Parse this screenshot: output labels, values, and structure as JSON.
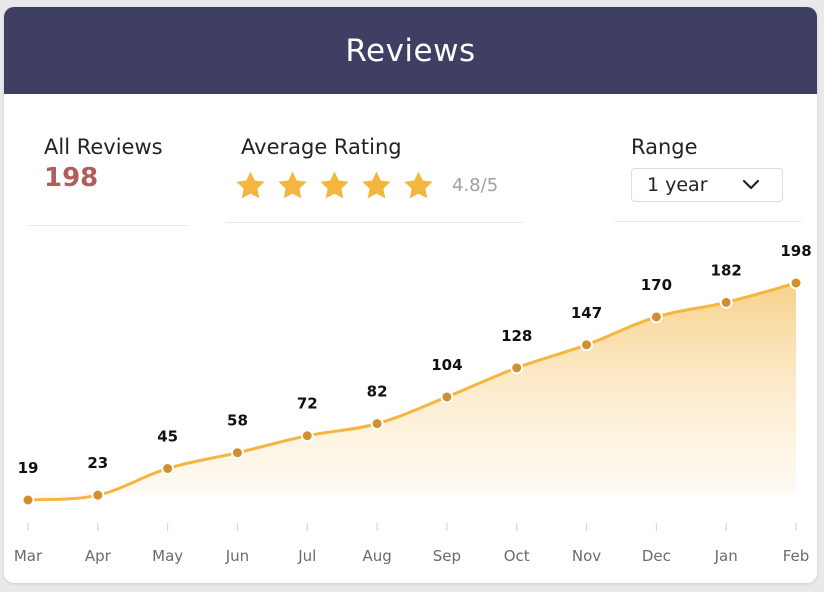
{
  "header": {
    "title": "Reviews"
  },
  "all_reviews": {
    "label": "All Reviews",
    "value": "198"
  },
  "average_rating": {
    "label": "Average Rating",
    "stars": 5,
    "rating_text": "4.8/5"
  },
  "range": {
    "label": "Range",
    "selected": "1 year"
  },
  "colors": {
    "header_bg": "#3e3f63",
    "accent_value": "#b05d5b",
    "star": "#f4b63f",
    "line": "#f4b63f",
    "point": "#d09030",
    "area_top": "#f7cf84"
  },
  "chart_data": {
    "type": "area",
    "categories": [
      "Mar",
      "Apr",
      "May",
      "Jun",
      "Jul",
      "Aug",
      "Sep",
      "Oct",
      "Nov",
      "Dec",
      "Jan",
      "Feb"
    ],
    "series": [
      {
        "values": [
          19,
          23,
          45,
          58,
          72,
          82,
          104,
          128,
          147,
          170,
          182,
          198
        ]
      }
    ],
    "data_labels": true,
    "grid": false,
    "legend": "none"
  }
}
